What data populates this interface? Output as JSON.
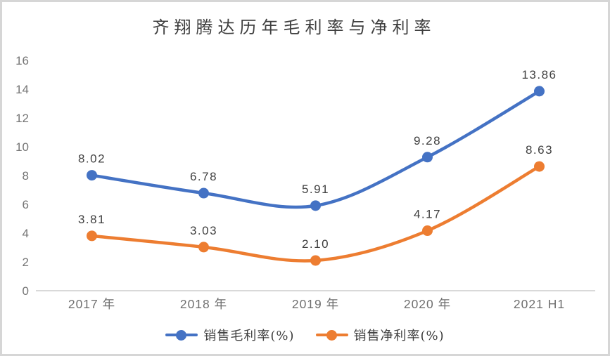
{
  "chart_data": {
    "type": "line",
    "title": "齐翔腾达历年毛利率与净利率",
    "categories": [
      "2017 年",
      "2018 年",
      "2019 年",
      "2020 年",
      "2021 H1"
    ],
    "series": [
      {
        "name": "销售毛利率(%)",
        "color": "#4472C4",
        "values": [
          8.02,
          6.78,
          5.91,
          9.28,
          13.86
        ],
        "labels": [
          "8.02",
          "6.78",
          "5.91",
          "9.28",
          "13.86"
        ]
      },
      {
        "name": "销售净利率(%)",
        "color": "#ED7D31",
        "values": [
          3.81,
          3.03,
          2.1,
          4.17,
          8.63
        ],
        "labels": [
          "3.81",
          "3.03",
          "2.10",
          "4.17",
          "8.63"
        ]
      }
    ],
    "xlabel": "",
    "ylabel": "",
    "ylim": [
      0,
      16
    ],
    "ytick_interval": 2,
    "grid": false,
    "smooth_lines": true,
    "legend_position": "bottom",
    "colors": {
      "axis_line": "#d9d9d9",
      "tick_label": "#757575",
      "data_label": "#3f3f3f",
      "title": "#3f3f3f",
      "border": "#d6d6d6",
      "background": "#ffffff"
    }
  }
}
